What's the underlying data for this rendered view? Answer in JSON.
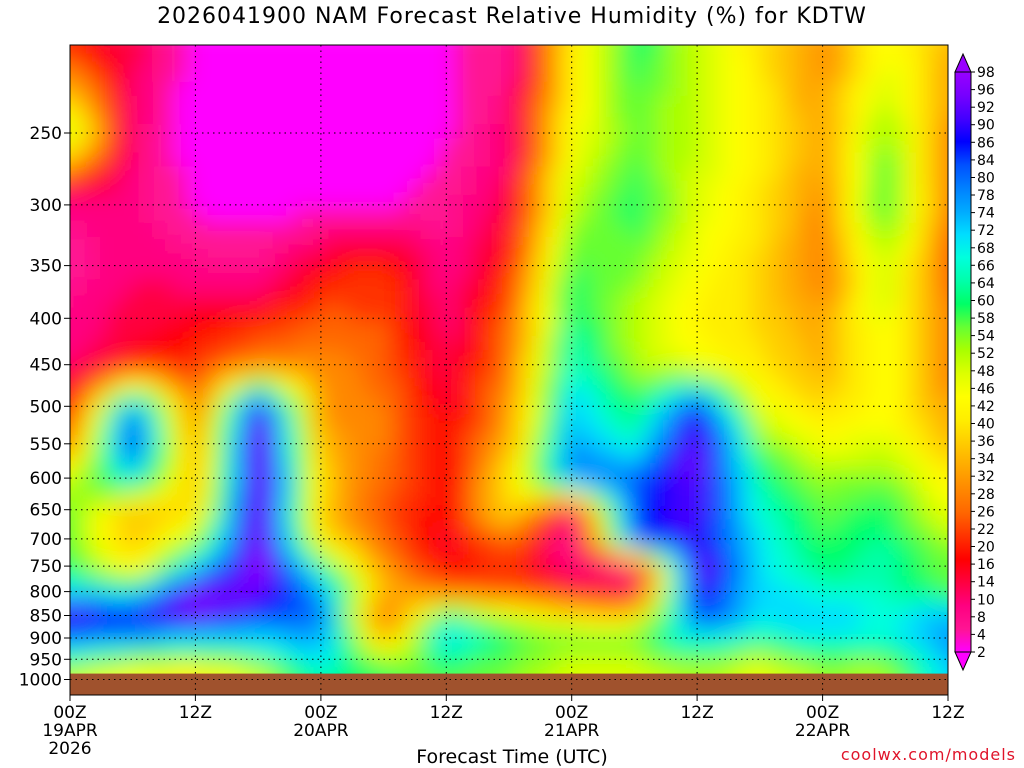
{
  "title": "2026041900 NAM Forecast Relative Humidity (%) for KDTW",
  "credit": "coolwx.com/models",
  "colors": {
    "ground": "#a0522d",
    "scale": [
      "#ff00ff",
      "#ff1493",
      "#ff0080",
      "#ff0040",
      "#ff0000",
      "#ff3300",
      "#ff6600",
      "#ff8800",
      "#ffaa00",
      "#ffcc00",
      "#ffee00",
      "#ffff00",
      "#ddff00",
      "#aaff00",
      "#66ff33",
      "#00ff66",
      "#00ffaa",
      "#00ffdd",
      "#00ddff",
      "#00aaff",
      "#0080ff",
      "#0050ff",
      "#0000ff",
      "#4400ff",
      "#7700ff",
      "#9900ff"
    ]
  },
  "chart_data": {
    "type": "heatmap",
    "title": "2026041900 NAM Forecast Relative Humidity (%) for KDTW",
    "xlabel": "Forecast Time (UTC)",
    "ylabel": "",
    "x_ticks": [
      {
        "hour": 0,
        "lines": [
          "00Z",
          "19APR",
          "2026"
        ]
      },
      {
        "hour": 12,
        "lines": [
          "12Z"
        ]
      },
      {
        "hour": 24,
        "lines": [
          "00Z",
          "20APR"
        ]
      },
      {
        "hour": 36,
        "lines": [
          "12Z"
        ]
      },
      {
        "hour": 48,
        "lines": [
          "00Z",
          "21APR"
        ]
      },
      {
        "hour": 60,
        "lines": [
          "12Z"
        ]
      },
      {
        "hour": 72,
        "lines": [
          "00Z",
          "22APR"
        ]
      },
      {
        "hour": 84,
        "lines": [
          "12Z"
        ]
      }
    ],
    "xlim_hours": [
      0,
      84
    ],
    "y_ticks": [
      250,
      300,
      350,
      400,
      450,
      500,
      550,
      600,
      650,
      700,
      750,
      800,
      850,
      900,
      950,
      1000
    ],
    "ylim_hPa": [
      200,
      1040
    ],
    "y_scale": "log-pressure (inverted)",
    "grid": true,
    "colorbar": {
      "labels": [
        98,
        96,
        92,
        90,
        86,
        84,
        80,
        78,
        74,
        72,
        68,
        66,
        64,
        60,
        58,
        54,
        52,
        48,
        46,
        42,
        40,
        36,
        34,
        32,
        28,
        26,
        22,
        20,
        16,
        14,
        10,
        8,
        4,
        2
      ],
      "range": [
        2,
        98
      ],
      "placement": "right"
    },
    "rh_grid": {
      "hours": [
        0,
        6,
        12,
        18,
        24,
        30,
        36,
        42,
        48,
        54,
        60,
        66,
        72,
        78,
        84
      ],
      "levels_hPa": [
        200,
        250,
        300,
        350,
        400,
        450,
        500,
        550,
        600,
        650,
        700,
        750,
        800,
        850,
        900,
        950,
        985
      ],
      "values": [
        [
          20,
          15,
          3,
          3,
          3,
          3,
          5,
          8,
          40,
          60,
          50,
          40,
          30,
          45,
          35
        ],
        [
          50,
          12,
          3,
          3,
          3,
          3,
          5,
          12,
          45,
          55,
          50,
          42,
          32,
          55,
          30
        ],
        [
          10,
          10,
          5,
          4,
          4,
          5,
          8,
          15,
          50,
          60,
          48,
          40,
          30,
          60,
          28
        ],
        [
          8,
          12,
          10,
          8,
          18,
          22,
          10,
          20,
          58,
          55,
          45,
          38,
          28,
          50,
          26
        ],
        [
          10,
          15,
          18,
          20,
          25,
          24,
          12,
          25,
          62,
          50,
          42,
          38,
          32,
          48,
          28
        ],
        [
          12,
          18,
          22,
          28,
          30,
          26,
          14,
          28,
          66,
          52,
          45,
          40,
          34,
          45,
          30
        ],
        [
          20,
          80,
          25,
          92,
          30,
          28,
          16,
          30,
          72,
          58,
          86,
          46,
          38,
          44,
          32
        ],
        [
          30,
          86,
          30,
          96,
          34,
          28,
          18,
          34,
          76,
          66,
          94,
          56,
          46,
          48,
          36
        ],
        [
          50,
          70,
          34,
          96,
          38,
          26,
          18,
          40,
          80,
          80,
          92,
          62,
          52,
          56,
          42
        ],
        [
          55,
          36,
          38,
          96,
          36,
          24,
          18,
          42,
          12,
          84,
          90,
          66,
          56,
          60,
          46
        ],
        [
          55,
          34,
          52,
          96,
          40,
          26,
          16,
          28,
          8,
          84,
          88,
          68,
          58,
          62,
          52
        ],
        [
          60,
          40,
          70,
          96,
          62,
          30,
          18,
          22,
          10,
          10,
          94,
          70,
          60,
          62,
          55
        ],
        [
          70,
          65,
          95,
          92,
          74,
          36,
          26,
          24,
          18,
          14,
          88,
          70,
          66,
          64,
          56
        ],
        [
          92,
          90,
          92,
          84,
          80,
          20,
          62,
          48,
          40,
          38,
          84,
          72,
          72,
          68,
          74
        ],
        [
          78,
          74,
          72,
          70,
          76,
          34,
          72,
          58,
          55,
          56,
          70,
          62,
          68,
          66,
          76
        ],
        [
          62,
          56,
          52,
          60,
          72,
          50,
          62,
          56,
          50,
          52,
          56,
          50,
          58,
          56,
          74
        ],
        [
          48,
          44,
          40,
          48,
          62,
          58,
          56,
          54,
          48,
          48,
          52,
          46,
          52,
          50,
          72
        ]
      ]
    },
    "ground_hPa": 985
  }
}
